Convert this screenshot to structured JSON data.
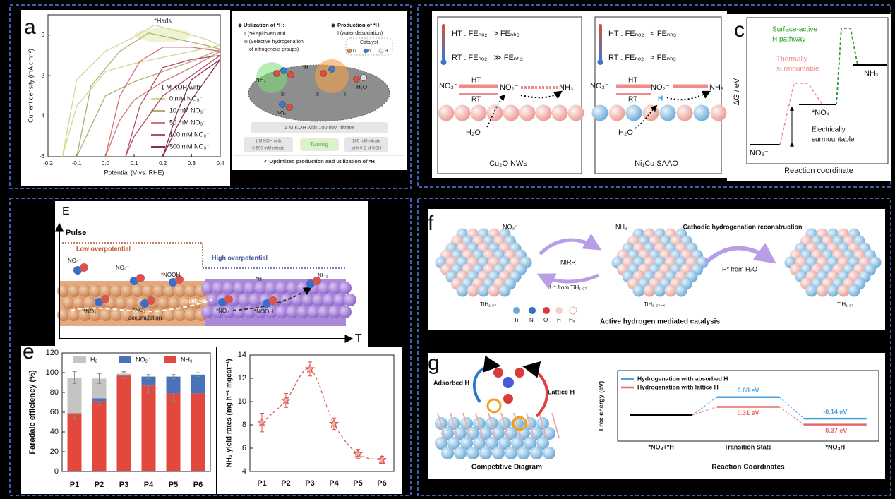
{
  "chart_data": [
    {
      "type": "line",
      "xlabel": "Potential (V vs. RHE)",
      "ylabel": "Current density (mA cm⁻²)",
      "xlim": [
        -0.2,
        0.4
      ],
      "xticks": [
        -0.2,
        -0.1,
        {
          "value": 0,
          "label": "0.0"
        },
        0.1,
        0.2,
        0.3,
        0.4
      ],
      "ylim": [
        -6,
        1
      ],
      "yticks": [
        -6,
        -4,
        -2,
        0
      ],
      "annotation": "*Hads",
      "legend_title": "1 M KOH with",
      "series": [
        {
          "name": "0 mM NO₃⁻",
          "color": "#d6d690",
          "x": [
            0.4,
            0.3,
            0.2,
            0.1,
            0,
            -0.1,
            -0.15,
            -0.1,
            0,
            0.1,
            0.17,
            0.25,
            0.35,
            0.4
          ],
          "values": [
            -0.5,
            -0.8,
            -1.1,
            -1.4,
            -1.8,
            -3.5,
            -6,
            -2.2,
            -0.8,
            -0.1,
            0.5,
            0.2,
            -0.2,
            -0.5
          ]
        },
        {
          "name": "10 mM NO₃⁻",
          "color": "#b3ad6c",
          "x": [
            0.4,
            0.3,
            0.2,
            0.1,
            0,
            -0.05,
            -0.1,
            -0.05,
            0.05,
            0.15,
            0.25,
            0.35,
            0.4
          ],
          "values": [
            -0.7,
            -1.3,
            -1.8,
            -2.3,
            -3,
            -4.5,
            -6,
            -2.5,
            -0.8,
            0.1,
            -0.2,
            -0.5,
            -0.7
          ]
        },
        {
          "name": "50 mM NO₃⁻",
          "color": "#d27474",
          "x": [
            0.4,
            0.3,
            0.2,
            0.1,
            0.05,
            0,
            0.05,
            0.12,
            0.2,
            0.3,
            0.4
          ],
          "values": [
            -0.8,
            -1.6,
            -2.3,
            -3.2,
            -4.2,
            -6,
            -3,
            -1.3,
            -0.6,
            -0.6,
            -0.8
          ]
        },
        {
          "name": "100 mM NO₃⁻",
          "color": "#b04f68",
          "x": [
            0.4,
            0.3,
            0.2,
            0.15,
            0.1,
            0.07,
            0.12,
            0.2,
            0.3,
            0.4
          ],
          "values": [
            -1,
            -2,
            -3,
            -4,
            -5,
            -6,
            -3.5,
            -1.6,
            -1.2,
            -1
          ]
        },
        {
          "name": "500 mM NO₃⁻",
          "color": "#8a2f50",
          "x": [
            0.4,
            0.35,
            0.3,
            0.25,
            0.2,
            0.25,
            0.3,
            0.4
          ],
          "values": [
            -1.2,
            -2.2,
            -3.2,
            -4.5,
            -6,
            -3.8,
            -2.2,
            -1.2
          ]
        }
      ]
    },
    {
      "type": "bar",
      "ylabel": "Faradaic efficiency (%)",
      "categories": [
        "P1",
        "P2",
        "P3",
        "P4",
        "P5",
        "P6"
      ],
      "ylim": [
        0,
        120
      ],
      "yticks": [
        0,
        20,
        40,
        60,
        80,
        100,
        120
      ],
      "stacked": true,
      "series": [
        {
          "name": "H₂",
          "color": "#c4c4c4",
          "values": [
            36,
            20,
            1,
            0,
            0,
            0
          ],
          "errors": [
            6,
            5,
            2,
            2,
            2,
            2
          ]
        },
        {
          "name": "NO₂⁻",
          "color": "#4a72b8",
          "values": [
            0,
            3,
            1,
            9,
            17,
            19
          ]
        },
        {
          "name": "NH₃",
          "color": "#e2483c",
          "values": [
            59,
            71,
            97,
            87,
            79,
            79
          ],
          "errors": [
            5,
            4,
            3,
            8,
            8,
            6
          ]
        }
      ]
    },
    {
      "type": "errorbar",
      "ylabel": "NH₃ yield rates (mg h⁻¹ mgcat⁻¹)",
      "categories": [
        "P1",
        "P2",
        "P3",
        "P4",
        "P5",
        "P6"
      ],
      "ylim": [
        4,
        14
      ],
      "yticks": [
        4,
        6,
        8,
        10,
        12,
        14
      ],
      "color": "#d9534f",
      "values": [
        8.2,
        10.1,
        12.8,
        8.1,
        5.5,
        5.0
      ],
      "errors": [
        0.8,
        0.6,
        0.6,
        0.5,
        0.4,
        0.3
      ]
    },
    {
      "type": "energy",
      "ylabel": "Free energy (eV)",
      "xlabel": "Reaction Coordinates",
      "categories": [
        "*NO₃+*H",
        "Transition State",
        "*NO₃H"
      ],
      "ylim": [
        -1,
        1.7
      ],
      "baseline_color": "#000000",
      "series": [
        {
          "name": "Hydrogenation with absorbed H",
          "color": "#4aa3e6",
          "values": [
            0,
            0.68,
            -0.14
          ],
          "value_labels": [
            null,
            "0.68 eV",
            "-0.14 eV"
          ]
        },
        {
          "name": "Hydrogenation with lattice H",
          "color": "#e46a6a",
          "values": [
            0,
            0.31,
            -0.37
          ],
          "value_labels": [
            null,
            "0.31 eV",
            "-0.37 eV"
          ]
        }
      ]
    }
  ],
  "panels": {
    "a": {
      "letter": "a",
      "texts": [
        "Utilization of *H:",
        "II (*H spillover) and",
        "III (Selective hydrogenation",
        "of nitrogenous groups)",
        "Production of *H:",
        "I (water dissociation)",
        "Catalyst",
        "O",
        "N",
        "H",
        "NH₃",
        "*H",
        "H₂O",
        "NO₃⁻",
        "III",
        "II",
        "I",
        "1 M KOH with 100 mM nitrate",
        "1 M KOH with",
        "0-500 mM nitrate",
        "Tuning",
        "100 mM nitrate",
        "with 0-2 M KOH",
        "✓ Optimized production and utilization of *H"
      ]
    },
    "b": {
      "texts": [
        "HT : FEₙₒ₂⁻ > FEₙₕ₃",
        "RT : FEₙₒ₂⁻ ≫ FEₙₕ₃",
        "NO₃⁻",
        "HT",
        "RT",
        "NO₂⁻",
        "NH₃",
        "H₂O",
        "Cu₂O NWs",
        "HT : FEₙₒ₂⁻ < FEₙₕ₃",
        "RT : FEₙₒ₂⁻ > FEₙₕ₃",
        "NO₃⁻",
        "HT",
        "RT",
        "NO₂⁻",
        "NH₃",
        "H",
        "H₂O",
        "Ni₁Cu SAAO"
      ]
    },
    "c": {
      "letter": "c",
      "texts": [
        "Surface-active",
        "H pathway",
        "Thermally",
        "surmountable",
        "NH₃",
        "*NOₓ",
        "Electrically",
        "surmountable",
        "NO₃⁻",
        "ΔG / eV",
        "Reaction coordinate"
      ]
    },
    "E": {
      "texts": [
        "E",
        "Pulse",
        "Low overpotential",
        "High overpotential",
        "NO₃⁻",
        "NO₂⁻",
        "*NOOH",
        "*H",
        "NH₃",
        "Spillover",
        "*NO₃",
        "*NO₂",
        "accumulation",
        "*NO₂",
        "*NOOH",
        "T"
      ]
    },
    "e": {
      "letter": "e"
    },
    "f": {
      "letter": "f",
      "texts": [
        "NO₃⁻",
        "NH₃",
        "Cathodic hydrogenation reconstruction",
        "NIRR",
        "H* from TiH₁.₉₇",
        "H* from H₂O",
        "TiH₁.₉₇",
        "TiH₁.₉₇₋ₓ",
        "TiH₁.₉₇",
        "Ti",
        "N",
        "O",
        "H",
        "Hᵥ",
        "Active hydrogen mediated catalysis"
      ]
    },
    "g": {
      "letter": "g",
      "texts": [
        "Adsorbed H",
        "Lattice H",
        "Competitive Diagram"
      ]
    }
  }
}
